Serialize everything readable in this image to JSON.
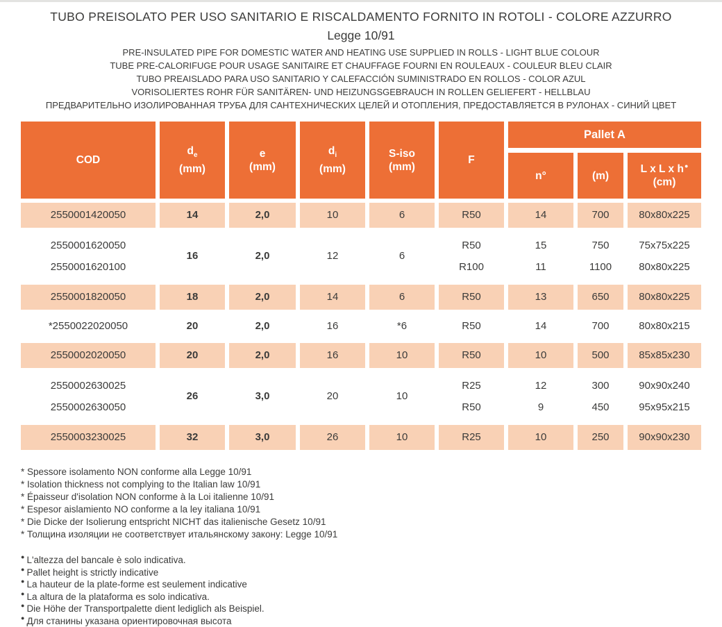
{
  "colors": {
    "header_orange": "#ED6F36",
    "row_peach": "#F9D1B5",
    "ink": "#3B3B3A"
  },
  "title": {
    "main": "TUBO PREISOLATO PER USO SANITARIO E RISCALDAMENTO FORNITO IN ROTOLI - COLORE AZZURRO",
    "law": "Legge 10/91",
    "subtitles": [
      "PRE-INSULATED PIPE FOR DOMESTIC WATER AND HEATING USE SUPPLIED IN ROLLS - LIGHT BLUE COLOUR",
      "TUBE PRE-CALORIFUGE POUR USAGE SANITAIRE ET CHAUFFAGE FOURNI EN ROULEAUX - COULEUR BLEU CLAIR",
      "TUBO PREAISLADO PARA USO SANITARIO Y CALEFACCIÓN SUMINISTRADO EN ROLLOS - COLOR AZUL",
      "VORISOLIERTES ROHR FÜR SANITÄREN- UND HEIZUNGSGEBRAUCH IN ROLLEN GELIEFERT - HELLBLAU",
      "ПРЕДВАРИТЕЛЬНО ИЗОЛИРОВАННАЯ ТРУБА ДЛЯ САНТЕХНИЧЕСКИХ ЦЕЛЕЙ И ОТОПЛЕНИЯ, ПРЕДОСТАВЛЯЕТСЯ В РУЛОНАХ - СИНИЙ ЦВЕТ"
    ]
  },
  "table": {
    "headers": {
      "cod": "COD",
      "de_base": "d",
      "de_sub": "e",
      "e": "e",
      "di_base": "d",
      "di_sub": "i",
      "siso": "S-iso",
      "mm": "(mm)",
      "f": "F",
      "pallet": "Pallet A",
      "n": "n°",
      "m": "(m)",
      "lxlxh": "L x L x h",
      "dot": "●",
      "cm": "(cm)"
    },
    "rows": [
      {
        "cod": "2550001420050",
        "de": "14",
        "e": "2,0",
        "di": "10",
        "siso": "6",
        "f": "R50",
        "n": "14",
        "m": "700",
        "lxlxh": "80x80x225"
      },
      {
        "cod1": "2550001620050",
        "cod2": "2550001620100",
        "de": "16",
        "e": "2,0",
        "di": "12",
        "siso": "6",
        "f1": "R50",
        "f2": "R100",
        "n1": "15",
        "n2": "11",
        "m1": "750",
        "m2": "1100",
        "lxlxh1": "75x75x225",
        "lxlxh2": "80x80x225"
      },
      {
        "cod": "2550001820050",
        "de": "18",
        "e": "2,0",
        "di": "14",
        "siso": "6",
        "f": "R50",
        "n": "13",
        "m": "650",
        "lxlxh": "80x80x225"
      },
      {
        "cod": "*2550022020050",
        "de": "20",
        "e": "2,0",
        "di": "16",
        "siso": "*6",
        "f": "R50",
        "n": "14",
        "m": "700",
        "lxlxh": "80x80x215"
      },
      {
        "cod": "2550002020050",
        "de": "20",
        "e": "2,0",
        "di": "16",
        "siso": "10",
        "f": "R50",
        "n": "10",
        "m": "500",
        "lxlxh": "85x85x230"
      },
      {
        "cod1": "2550002630025",
        "cod2": "2550002630050",
        "de": "26",
        "e": "3,0",
        "di": "20",
        "siso": "10",
        "f1": "R25",
        "f2": "R50",
        "n1": "12",
        "n2": "9",
        "m1": "300",
        "m2": "450",
        "lxlxh1": "90x90x240",
        "lxlxh2": "95x95x215"
      },
      {
        "cod": "2550003230025",
        "de": "32",
        "e": "3,0",
        "di": "26",
        "siso": "10",
        "f": "R25",
        "n": "10",
        "m": "250",
        "lxlxh": "90x90x230"
      }
    ]
  },
  "footnotes": {
    "star": [
      "* Spessore isolamento NON conforme alla Legge 10/91",
      "* Isolation thickness not complying to the Italian law 10/91",
      "* Épaisseur d'isolation NON conforme à la Loi italienne 10/91",
      "* Espesor aislamiento NO conforme a la ley italiana 10/91",
      "* Die Dicke der Isolierung entspricht NICHT das italienische Gesetz 10/91",
      "* Толщина изоляции не соответствует итальянскому закону: Legge 10/91"
    ],
    "dot_glyph": "●",
    "dot": [
      "L'altezza del bancale è solo indicativa.",
      "Pallet height is strictly indicative",
      "La hauteur de la plate-forme est seulement indicative",
      "La altura de la plataforma es solo indicativa.",
      "Die Höhe der Transportpalette dient lediglich als Beispiel.",
      "Для станины указана ориентировочная высота"
    ]
  }
}
